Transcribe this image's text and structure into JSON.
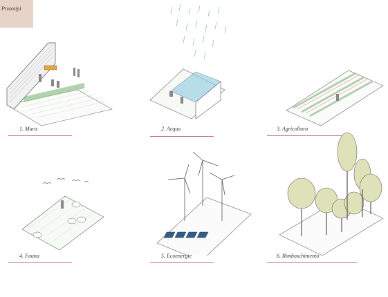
{
  "header": {
    "tag_label": "Prototipi",
    "tag_color": "#e7d3c7"
  },
  "prototypes": [
    {
      "label": "1. Mura",
      "icon": "wall-icon"
    },
    {
      "label": "2. Acqua",
      "icon": "water-basin-icon"
    },
    {
      "label": "3. Agricoltura",
      "icon": "crop-rows-icon"
    },
    {
      "label": "4. Fauna",
      "icon": "sheep-icon"
    },
    {
      "label": "5. Ecoenergie",
      "icon": "wind-turbine-icon"
    },
    {
      "label": "6. Rimboschimento",
      "icon": "tree-icon"
    }
  ],
  "colors": {
    "underline": "#c4707d",
    "grass": "#8fc08a",
    "water": "#8ccbe0",
    "foliage": "#dfe2b8"
  }
}
